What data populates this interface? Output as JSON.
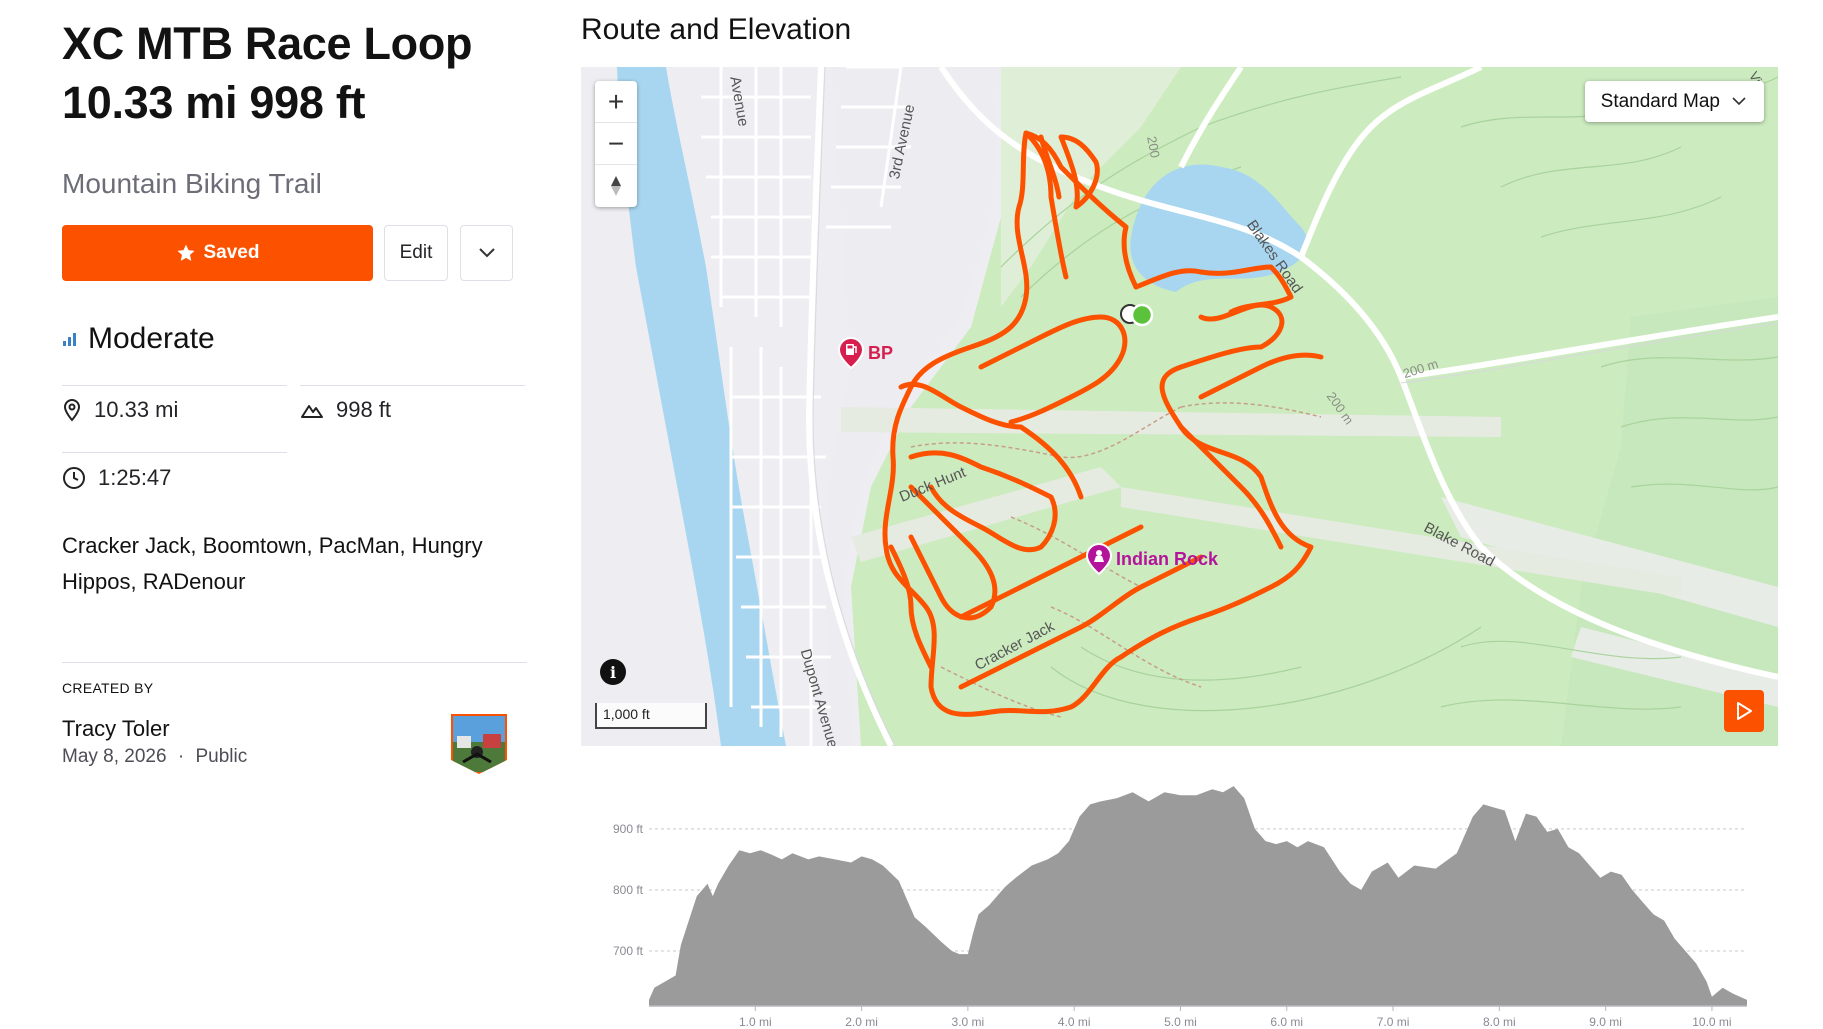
{
  "route": {
    "title": "XC MTB Race Loop",
    "summary": "10.33 mi 998 ft",
    "subtitle": "Mountain Biking Trail",
    "saved_label": "Saved",
    "edit_label": "Edit",
    "difficulty": "Moderate",
    "distance": "10.33 mi",
    "elevation_gain": "998 ft",
    "moving_time": "1:25:47",
    "segments_text": "Cracker Jack, Boomtown, PacMan, Hungry Hippos, RADenour",
    "created_by_label": "CREATED BY",
    "creator_name": "Tracy Toler",
    "created_date": "May 8, 2026",
    "visibility": "Public",
    "meta_separator": "·"
  },
  "colors": {
    "brand": "#fc5200",
    "route_line": "#fc5200",
    "difficulty_icon": "#3b82c4",
    "start_marker": "#5cc23c",
    "poi_magenta": "#b3149a",
    "poi_red": "#d61f4f",
    "water": "#a8d6f0",
    "park": "#aee3a2",
    "chart_fill": "#9b9b9b"
  },
  "map": {
    "section_title": "Route and Elevation",
    "map_type": "Standard Map",
    "zoom_in": "+",
    "zoom_out": "−",
    "compass": "▲",
    "info": "i",
    "scale_label": "1,000 ft",
    "labels": {
      "avenue_top": "Avenue",
      "third_avenue": "3rd Avenue",
      "dupont_avenue": "Dupont Avenue",
      "blakes_road": "Blakes Road",
      "blake_road": "Blake Road",
      "duck_hunt": "Duck Hunt",
      "cracker_jack": "Cracker Jack",
      "contour_200_a": "200 m",
      "contour_200_b": "200 m",
      "contour_200_c": "200",
      "corner_vie": "Vie"
    },
    "pois": {
      "bp": "BP",
      "indian_rock": "Indian Rock"
    }
  },
  "chart_data": {
    "type": "area",
    "title": "",
    "xlabel": "",
    "ylabel": "",
    "x_unit": "mi",
    "y_unit": "ft",
    "xlim": [
      0,
      10.33
    ],
    "ylim": [
      610,
      980
    ],
    "x_ticks": [
      1.0,
      2.0,
      3.0,
      4.0,
      5.0,
      6.0,
      7.0,
      8.0,
      9.0,
      10.0
    ],
    "x_tick_labels": [
      "1.0 mi",
      "2.0 mi",
      "3.0 mi",
      "4.0 mi",
      "5.0 mi",
      "6.0 mi",
      "7.0 mi",
      "8.0 mi",
      "9.0 mi",
      "10.0 mi"
    ],
    "y_ticks": [
      700,
      800,
      900
    ],
    "y_tick_labels": [
      "700 ft",
      "800 ft",
      "900 ft"
    ],
    "grid": "horizontal-dashed",
    "x": [
      0,
      0.05,
      0.25,
      0.3,
      0.45,
      0.55,
      0.6,
      0.65,
      0.75,
      0.85,
      0.95,
      1.05,
      1.15,
      1.25,
      1.35,
      1.5,
      1.6,
      1.75,
      1.9,
      2.0,
      2.1,
      2.2,
      2.35,
      2.5,
      2.6,
      2.75,
      2.85,
      2.92,
      3.0,
      3.05,
      3.1,
      3.2,
      3.35,
      3.45,
      3.6,
      3.75,
      3.85,
      3.95,
      4.05,
      4.15,
      4.25,
      4.4,
      4.55,
      4.7,
      4.85,
      5.0,
      5.15,
      5.3,
      5.4,
      5.5,
      5.6,
      5.7,
      5.8,
      5.9,
      6.0,
      6.1,
      6.2,
      6.35,
      6.5,
      6.6,
      6.7,
      6.8,
      6.95,
      7.05,
      7.2,
      7.4,
      7.6,
      7.75,
      7.85,
      7.95,
      8.05,
      8.15,
      8.25,
      8.35,
      8.45,
      8.55,
      8.65,
      8.75,
      8.85,
      8.95,
      9.05,
      9.15,
      9.25,
      9.35,
      9.45,
      9.55,
      9.65,
      9.75,
      9.85,
      9.95,
      10.0,
      10.1,
      10.2,
      10.33
    ],
    "y": [
      620,
      640,
      660,
      710,
      790,
      810,
      790,
      810,
      840,
      865,
      860,
      865,
      858,
      850,
      860,
      850,
      855,
      850,
      845,
      855,
      850,
      840,
      815,
      755,
      740,
      715,
      700,
      695,
      695,
      730,
      760,
      775,
      805,
      820,
      840,
      850,
      860,
      880,
      920,
      940,
      945,
      950,
      960,
      945,
      960,
      955,
      955,
      965,
      960,
      970,
      950,
      900,
      880,
      875,
      880,
      870,
      880,
      870,
      830,
      810,
      800,
      830,
      845,
      820,
      840,
      835,
      860,
      920,
      940,
      935,
      930,
      880,
      925,
      920,
      895,
      900,
      870,
      860,
      840,
      820,
      830,
      825,
      800,
      780,
      760,
      750,
      720,
      700,
      680,
      650,
      625,
      640,
      630,
      620
    ]
  }
}
